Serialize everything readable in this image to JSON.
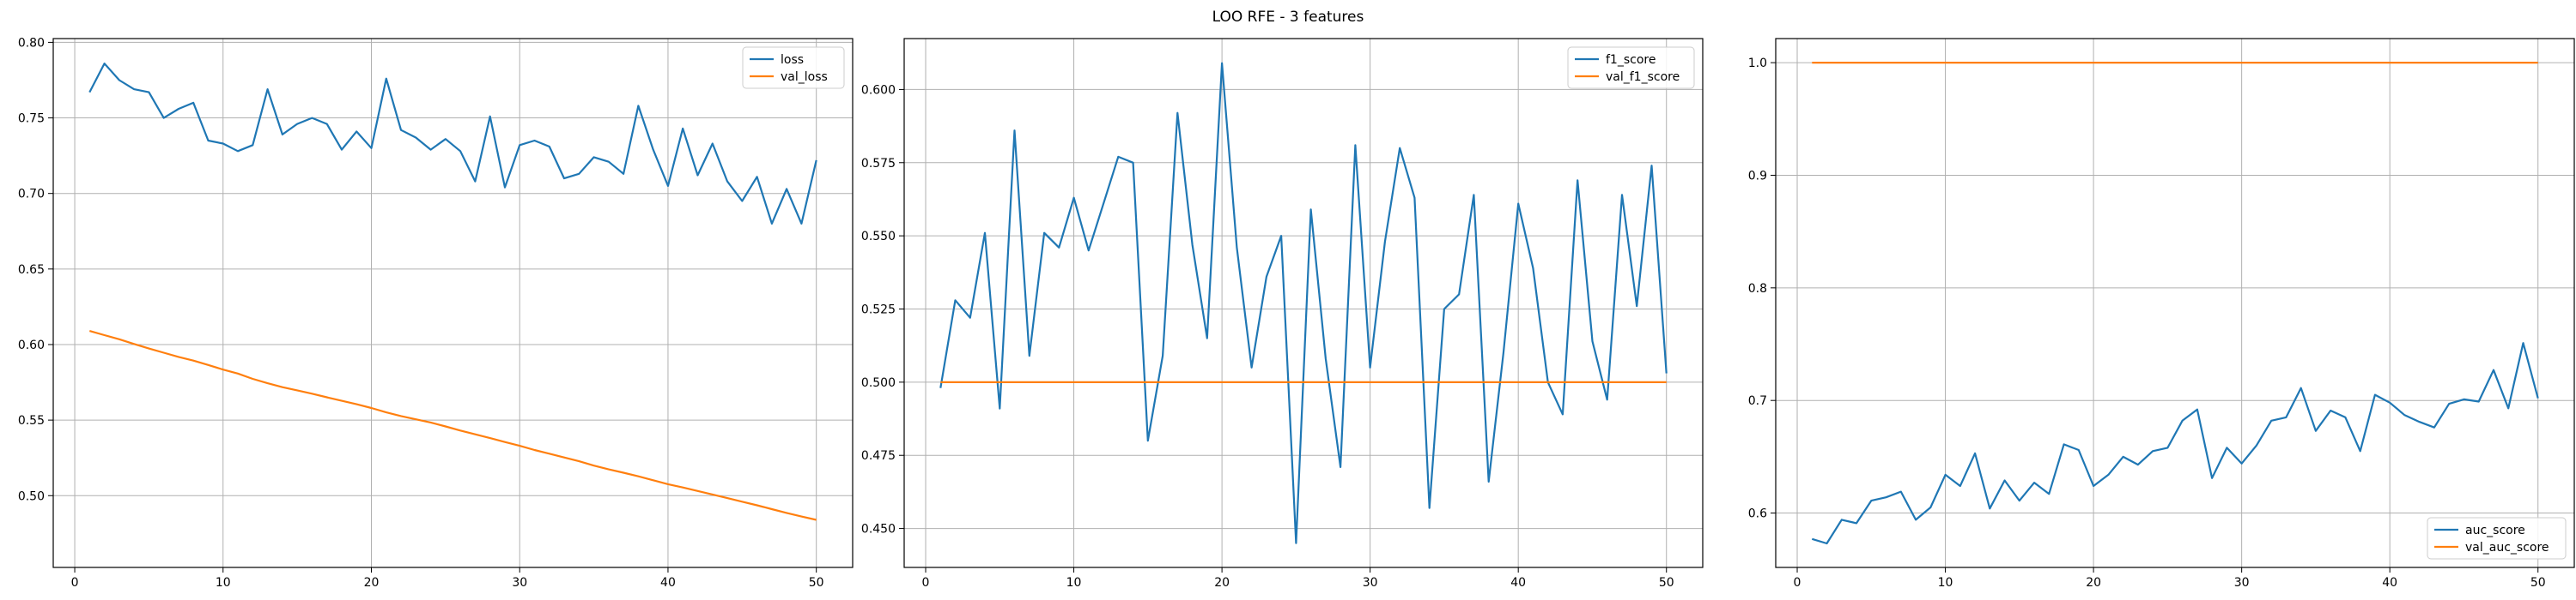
{
  "figure": {
    "title": "LOO RFE - 3 features"
  },
  "colors": {
    "series1": "#1f77b4",
    "series2": "#ff7f0e",
    "grid": "#b0b0b0",
    "axes": "#000000"
  },
  "chart_data": [
    {
      "type": "line",
      "x": [
        1,
        2,
        3,
        4,
        5,
        6,
        7,
        8,
        9,
        10,
        11,
        12,
        13,
        14,
        15,
        16,
        17,
        18,
        19,
        20,
        21,
        22,
        23,
        24,
        25,
        26,
        27,
        28,
        29,
        30,
        31,
        32,
        33,
        34,
        35,
        36,
        37,
        38,
        39,
        40,
        41,
        42,
        43,
        44,
        45,
        46,
        47,
        48,
        49,
        50
      ],
      "series": [
        {
          "name": "loss",
          "values": [
            0.767,
            0.786,
            0.775,
            0.769,
            0.767,
            0.75,
            0.756,
            0.76,
            0.735,
            0.733,
            0.728,
            0.732,
            0.769,
            0.739,
            0.746,
            0.75,
            0.746,
            0.729,
            0.741,
            0.73,
            0.776,
            0.742,
            0.737,
            0.729,
            0.736,
            0.728,
            0.708,
            0.751,
            0.704,
            0.732,
            0.735,
            0.731,
            0.71,
            0.713,
            0.724,
            0.721,
            0.713,
            0.758,
            0.729,
            0.705,
            0.743,
            0.712,
            0.733,
            0.708,
            0.695,
            0.711,
            0.68,
            0.703,
            0.68,
            0.722
          ]
        },
        {
          "name": "val_loss",
          "values": [
            0.609,
            0.6062,
            0.6035,
            0.6004,
            0.5974,
            0.5946,
            0.5918,
            0.5894,
            0.5865,
            0.5834,
            0.5808,
            0.5773,
            0.5744,
            0.5718,
            0.5697,
            0.5675,
            0.5651,
            0.5628,
            0.5605,
            0.558,
            0.5551,
            0.5527,
            0.5505,
            0.5484,
            0.5458,
            0.5431,
            0.5406,
            0.5381,
            0.5355,
            0.533,
            0.5302,
            0.5278,
            0.5253,
            0.5228,
            0.5199,
            0.5174,
            0.5152,
            0.5128,
            0.5102,
            0.5076,
            0.5054,
            0.5031,
            0.5008,
            0.4984,
            0.496,
            0.4936,
            0.4911,
            0.4886,
            0.4862,
            0.484
          ]
        }
      ],
      "title": "",
      "xlabel": "",
      "ylabel": "",
      "xlim": [
        -1.45,
        52.45
      ],
      "ylim": [
        0.4525,
        0.8025
      ],
      "xticks": [
        0,
        10,
        20,
        30,
        40,
        50
      ],
      "yticks": [
        0.5,
        0.55,
        0.6,
        0.65,
        0.7,
        0.75,
        0.8
      ],
      "ytick_labels": [
        "0.50",
        "0.55",
        "0.60",
        "0.65",
        "0.70",
        "0.75",
        "0.80"
      ],
      "grid": true,
      "legend": "top-right"
    },
    {
      "type": "line",
      "x": [
        1,
        2,
        3,
        4,
        5,
        6,
        7,
        8,
        9,
        10,
        11,
        12,
        13,
        14,
        15,
        16,
        17,
        18,
        19,
        20,
        21,
        22,
        23,
        24,
        25,
        26,
        27,
        28,
        29,
        30,
        31,
        32,
        33,
        34,
        35,
        36,
        37,
        38,
        39,
        40,
        41,
        42,
        43,
        44,
        45,
        46,
        47,
        48,
        49,
        50
      ],
      "series": [
        {
          "name": "f1_score",
          "values": [
            0.498,
            0.528,
            0.522,
            0.551,
            0.491,
            0.586,
            0.509,
            0.551,
            0.546,
            0.563,
            0.545,
            0.561,
            0.577,
            0.575,
            0.48,
            0.509,
            0.592,
            0.547,
            0.515,
            0.609,
            0.546,
            0.505,
            0.536,
            0.55,
            0.445,
            0.559,
            0.508,
            0.471,
            0.581,
            0.505,
            0.548,
            0.58,
            0.563,
            0.457,
            0.525,
            0.53,
            0.564,
            0.466,
            0.51,
            0.561,
            0.539,
            0.5,
            0.489,
            0.569,
            0.514,
            0.494,
            0.564,
            0.526,
            0.574,
            0.503
          ]
        },
        {
          "name": "val_f1_score",
          "values": [
            0.5,
            0.5,
            0.5,
            0.5,
            0.5,
            0.5,
            0.5,
            0.5,
            0.5,
            0.5,
            0.5,
            0.5,
            0.5,
            0.5,
            0.5,
            0.5,
            0.5,
            0.5,
            0.5,
            0.5,
            0.5,
            0.5,
            0.5,
            0.5,
            0.5,
            0.5,
            0.5,
            0.5,
            0.5,
            0.5,
            0.5,
            0.5,
            0.5,
            0.5,
            0.5,
            0.5,
            0.5,
            0.5,
            0.5,
            0.5,
            0.5,
            0.5,
            0.5,
            0.5,
            0.5,
            0.5,
            0.5,
            0.5,
            0.5,
            0.5
          ]
        }
      ],
      "title": "",
      "xlabel": "",
      "ylabel": "",
      "xlim": [
        -1.45,
        52.45
      ],
      "ylim": [
        0.4367,
        0.6174
      ],
      "xticks": [
        0,
        10,
        20,
        30,
        40,
        50
      ],
      "yticks": [
        0.45,
        0.475,
        0.5,
        0.525,
        0.55,
        0.575,
        0.6
      ],
      "ytick_labels": [
        "0.450",
        "0.475",
        "0.500",
        "0.525",
        "0.550",
        "0.575",
        "0.600"
      ],
      "grid": true,
      "legend": "top-right"
    },
    {
      "type": "line",
      "x": [
        1,
        2,
        3,
        4,
        5,
        6,
        7,
        8,
        9,
        10,
        11,
        12,
        13,
        14,
        15,
        16,
        17,
        18,
        19,
        20,
        21,
        22,
        23,
        24,
        25,
        26,
        27,
        28,
        29,
        30,
        31,
        32,
        33,
        34,
        35,
        36,
        37,
        38,
        39,
        40,
        41,
        42,
        43,
        44,
        45,
        46,
        47,
        48,
        49,
        50
      ],
      "series": [
        {
          "name": "auc_score",
          "values": [
            0.577,
            0.573,
            0.594,
            0.591,
            0.611,
            0.614,
            0.619,
            0.594,
            0.605,
            0.634,
            0.624,
            0.653,
            0.604,
            0.629,
            0.611,
            0.627,
            0.617,
            0.661,
            0.656,
            0.624,
            0.634,
            0.65,
            0.643,
            0.655,
            0.658,
            0.682,
            0.692,
            0.631,
            0.658,
            0.644,
            0.66,
            0.682,
            0.685,
            0.711,
            0.673,
            0.691,
            0.685,
            0.655,
            0.705,
            0.698,
            0.687,
            0.681,
            0.676,
            0.697,
            0.701,
            0.699,
            0.727,
            0.693,
            0.751,
            0.702
          ]
        },
        {
          "name": "val_auc_score",
          "values": [
            1,
            1,
            1,
            1,
            1,
            1,
            1,
            1,
            1,
            1,
            1,
            1,
            1,
            1,
            1,
            1,
            1,
            1,
            1,
            1,
            1,
            1,
            1,
            1,
            1,
            1,
            1,
            1,
            1,
            1,
            1,
            1,
            1,
            1,
            1,
            1,
            1,
            1,
            1,
            1,
            1,
            1,
            1,
            1,
            1,
            1,
            1,
            1,
            1,
            1
          ]
        }
      ],
      "title": "",
      "xlabel": "",
      "ylabel": "",
      "xlim": [
        -1.45,
        52.45
      ],
      "ylim": [
        0.5517,
        1.0214
      ],
      "xticks": [
        0,
        10,
        20,
        30,
        40,
        50
      ],
      "yticks": [
        0.6,
        0.7,
        0.8,
        0.9,
        1.0
      ],
      "ytick_labels": [
        "0.6",
        "0.7",
        "0.8",
        "0.9",
        "1.0"
      ],
      "grid": true,
      "legend": "bottom-right"
    }
  ]
}
